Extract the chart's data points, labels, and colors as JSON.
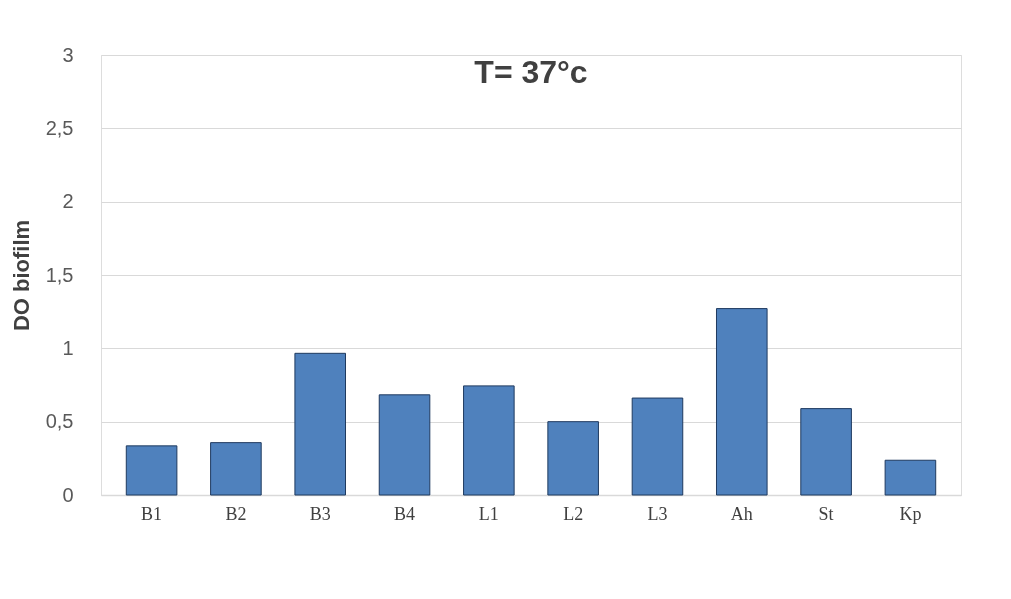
{
  "chart_data": {
    "type": "bar",
    "title": "T= 37°c",
    "ylabel": "DO biofilm",
    "categories": [
      "B1",
      "B2",
      "B3",
      "B4",
      "L1",
      "L2",
      "L3",
      "Ah",
      "St",
      "Kp"
    ],
    "values": [
      0.335,
      0.357,
      0.966,
      0.683,
      0.744,
      0.5,
      0.661,
      1.271,
      0.589,
      0.237
    ],
    "color": "#4f81bd",
    "ylim": [
      0,
      3
    ],
    "yticks": [
      0,
      {
        "value": 0.5,
        "label": "0,5"
      },
      1,
      {
        "value": 1.5,
        "label": "1,5"
      },
      2,
      {
        "value": 2.5,
        "label": "2,5"
      },
      3
    ],
    "grid": "y"
  }
}
